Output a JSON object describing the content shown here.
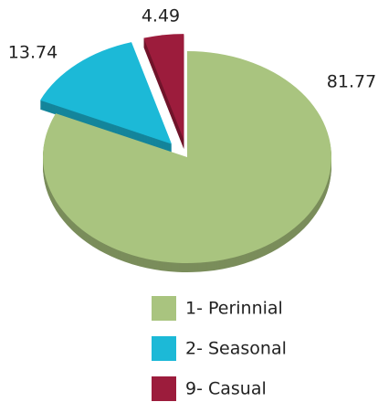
{
  "chart_data": {
    "type": "pie",
    "categories": [
      "1- Perinnial",
      "2- Seasonal",
      "9- Casual"
    ],
    "values": [
      81.77,
      13.74,
      4.49
    ],
    "colors": [
      "#a9c47f",
      "#1cb9d7",
      "#9c1c3c"
    ],
    "exploded": [
      false,
      true,
      true
    ],
    "legend": "bottom"
  }
}
